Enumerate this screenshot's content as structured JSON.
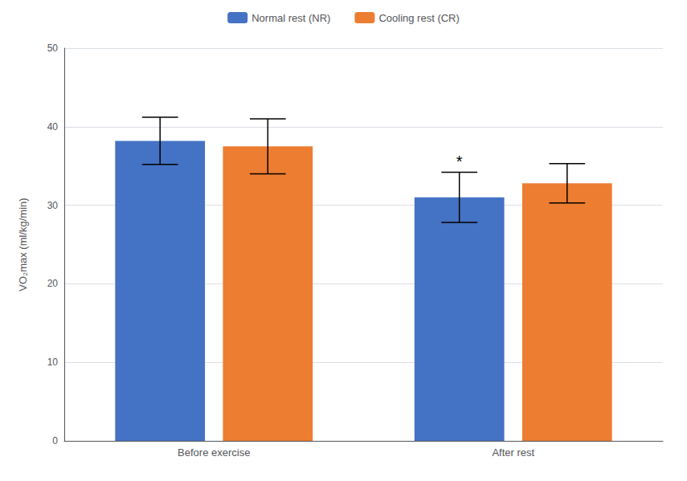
{
  "chart_data": {
    "type": "bar",
    "categories": [
      "Before exercise",
      "After rest"
    ],
    "series": [
      {
        "name": "Normal rest (NR)",
        "color": "#4472C4",
        "values": [
          38.2,
          31.0
        ],
        "errors": [
          3.0,
          3.2
        ]
      },
      {
        "name": "Cooling rest (CR)",
        "color": "#ED7D31",
        "values": [
          37.5,
          32.8
        ],
        "errors": [
          3.5,
          2.5
        ]
      }
    ],
    "ylabel": "VO₂max (ml/kg/min)",
    "ylim": [
      0,
      50
    ],
    "yticks": [
      0,
      10,
      20,
      30,
      40,
      50
    ],
    "grid": true,
    "legend": "top",
    "annotations": [
      {
        "text": "*",
        "category": "After rest",
        "series": "Normal rest (NR)"
      }
    ]
  }
}
